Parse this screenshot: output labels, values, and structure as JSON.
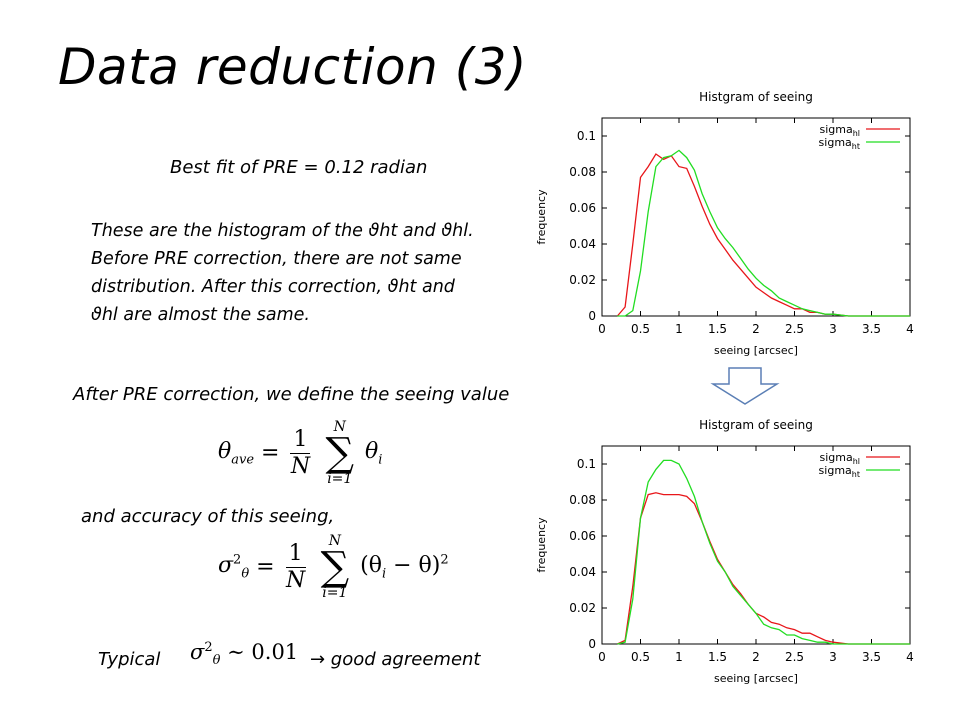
{
  "slide": {
    "title": "Data reduction (3)",
    "best_fit": "Best fit of PRE = 0.12 radian",
    "para_lines": [
      "These are the histogram of the ϑht and ϑhl.",
      "Before PRE correction, there are not same",
      "distribution. After this correction, ϑht and",
      "ϑhl are almost the same."
    ],
    "after_text": "After PRE correction, we define the seeing value",
    "accuracy_text": "and accuracy of this seeing,",
    "typical_label": "Typical",
    "good_agreement": "→ good agreement",
    "eq1": {
      "lhs": "θ",
      "lhs_sub": "ave",
      "eq": "=",
      "num": "1",
      "den": "N",
      "upper": "N",
      "lower": "i=1",
      "term": "θ",
      "term_sub": "i"
    },
    "eq2": {
      "lhs": "σ",
      "lhs_sub": "θ",
      "lhs_sup": "2",
      "eq": "=",
      "num": "1",
      "den": "N",
      "upper": "N",
      "lower": "i=1",
      "term": "(θ",
      "term_sub": "i",
      "term_rest": " − θ)",
      "term_sup": "2"
    },
    "eq3": {
      "lhs": "σ",
      "lhs_sub": "θ",
      "lhs_sup": "2",
      "rel": "∼ 0.01"
    }
  },
  "chart_data": [
    {
      "type": "line",
      "title": "Histgram of seeing",
      "xlabel": "seeing [arcsec]",
      "ylabel": "frequency",
      "xlim": [
        0,
        4
      ],
      "ylim": [
        0,
        0.11
      ],
      "xticks": [
        "0",
        "0.5",
        "1",
        "1.5",
        "2",
        "2.5",
        "3",
        "3.5",
        "4"
      ],
      "yticks": [
        "0",
        "0.02",
        "0.04",
        "0.06",
        "0.08",
        "0.1"
      ],
      "legend_position": "top-right",
      "x": [
        0.2,
        0.3,
        0.4,
        0.5,
        0.6,
        0.7,
        0.8,
        0.9,
        1.0,
        1.1,
        1.2,
        1.3,
        1.4,
        1.5,
        1.6,
        1.7,
        1.8,
        1.9,
        2.0,
        2.1,
        2.2,
        2.3,
        2.4,
        2.5,
        2.6,
        2.7,
        2.8,
        2.9,
        3.0,
        3.2,
        3.5,
        4.0
      ],
      "series": [
        {
          "name": "sigma",
          "name_sub": "hl",
          "color": "#e8161a",
          "values": [
            0.0,
            0.005,
            0.04,
            0.077,
            0.083,
            0.09,
            0.087,
            0.089,
            0.083,
            0.082,
            0.072,
            0.061,
            0.051,
            0.043,
            0.037,
            0.031,
            0.026,
            0.021,
            0.016,
            0.013,
            0.01,
            0.008,
            0.006,
            0.004,
            0.004,
            0.002,
            0.002,
            0.001,
            0.001,
            0.0,
            0.0,
            0.0
          ]
        },
        {
          "name": "sigma",
          "name_sub": "ht",
          "color": "#22dd22",
          "values": [
            0.0,
            0.0,
            0.003,
            0.025,
            0.058,
            0.083,
            0.088,
            0.089,
            0.092,
            0.088,
            0.081,
            0.068,
            0.058,
            0.049,
            0.043,
            0.038,
            0.032,
            0.026,
            0.021,
            0.017,
            0.014,
            0.01,
            0.008,
            0.006,
            0.004,
            0.003,
            0.002,
            0.001,
            0.001,
            0.0,
            0.0,
            0.0
          ]
        }
      ]
    },
    {
      "type": "line",
      "title": "Histgram of seeing",
      "xlabel": "seeing [arcsec]",
      "ylabel": "frequency",
      "xlim": [
        0,
        4
      ],
      "ylim": [
        0,
        0.11
      ],
      "xticks": [
        "0",
        "0.5",
        "1",
        "1.5",
        "2",
        "2.5",
        "3",
        "3.5",
        "4"
      ],
      "yticks": [
        "0",
        "0.02",
        "0.04",
        "0.06",
        "0.08",
        "0.1"
      ],
      "legend_position": "top-right",
      "x": [
        0.2,
        0.3,
        0.4,
        0.5,
        0.6,
        0.7,
        0.8,
        0.9,
        1.0,
        1.1,
        1.2,
        1.3,
        1.4,
        1.5,
        1.6,
        1.7,
        1.8,
        1.9,
        2.0,
        2.1,
        2.2,
        2.3,
        2.4,
        2.5,
        2.6,
        2.7,
        2.8,
        2.9,
        3.0,
        3.2,
        3.5,
        4.0
      ],
      "series": [
        {
          "name": "sigma",
          "name_sub": "hl",
          "color": "#e8161a",
          "values": [
            0.0,
            0.002,
            0.032,
            0.07,
            0.083,
            0.084,
            0.083,
            0.083,
            0.083,
            0.082,
            0.078,
            0.068,
            0.057,
            0.047,
            0.04,
            0.033,
            0.028,
            0.022,
            0.017,
            0.015,
            0.012,
            0.011,
            0.009,
            0.008,
            0.006,
            0.006,
            0.004,
            0.002,
            0.001,
            0.0,
            0.0,
            0.0
          ]
        },
        {
          "name": "sigma",
          "name_sub": "ht",
          "color": "#22dd22",
          "values": [
            0.0,
            0.001,
            0.025,
            0.07,
            0.09,
            0.097,
            0.102,
            0.102,
            0.1,
            0.092,
            0.082,
            0.068,
            0.056,
            0.046,
            0.04,
            0.032,
            0.027,
            0.022,
            0.017,
            0.011,
            0.009,
            0.008,
            0.005,
            0.005,
            0.003,
            0.002,
            0.001,
            0.001,
            0.0,
            0.0,
            0.0,
            0.0
          ]
        }
      ]
    }
  ]
}
